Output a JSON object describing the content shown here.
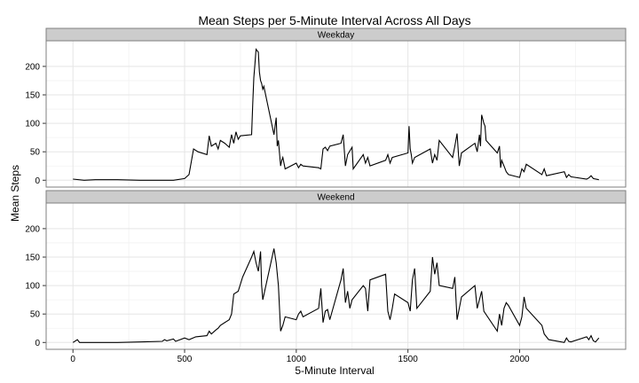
{
  "chart_data": {
    "type": "line",
    "title": "Mean Steps per 5-Minute Interval Across All Days",
    "xlabel": "5-Minute Interval",
    "ylabel": "Mean Steps",
    "xlim": [
      -120,
      2475
    ],
    "ylim": [
      -12,
      245
    ],
    "x_ticks": [
      0,
      500,
      1000,
      1500,
      2000
    ],
    "x_tick_labels": [
      "0",
      "500",
      "1000",
      "1500",
      "2000"
    ],
    "y_ticks": [
      0,
      50,
      100,
      150,
      200
    ],
    "y_tick_labels": [
      "0",
      "50",
      "100",
      "150",
      "200"
    ],
    "grid": true,
    "facets": [
      {
        "label": "Weekday",
        "x": [
          0,
          50,
          100,
          200,
          300,
          400,
          450,
          500,
          520,
          540,
          560,
          600,
          610,
          620,
          640,
          650,
          660,
          680,
          700,
          710,
          720,
          730,
          740,
          750,
          800,
          805,
          810,
          815,
          820,
          830,
          835,
          840,
          845,
          850,
          855,
          900,
          910,
          915,
          920,
          930,
          935,
          940,
          950,
          1000,
          1010,
          1020,
          1030,
          1100,
          1110,
          1120,
          1130,
          1140,
          1150,
          1200,
          1210,
          1220,
          1230,
          1250,
          1255,
          1300,
          1310,
          1320,
          1330,
          1400,
          1410,
          1420,
          1430,
          1500,
          1505,
          1510,
          1515,
          1520,
          1530,
          1600,
          1610,
          1620,
          1630,
          1640,
          1700,
          1710,
          1720,
          1730,
          1740,
          1800,
          1810,
          1820,
          1825,
          1830,
          1840,
          1845,
          1850,
          1900,
          1910,
          1915,
          1920,
          1930,
          1940,
          1950,
          2000,
          2010,
          2020,
          2030,
          2100,
          2110,
          2120,
          2200,
          2210,
          2220,
          2230,
          2300,
          2310,
          2320,
          2330,
          2355
        ],
        "values": [
          2,
          0,
          1,
          1,
          0,
          0,
          0,
          3,
          10,
          55,
          50,
          45,
          78,
          60,
          65,
          55,
          70,
          65,
          58,
          80,
          65,
          85,
          72,
          78,
          80,
          135,
          180,
          205,
          230,
          225,
          190,
          175,
          170,
          160,
          165,
          80,
          110,
          60,
          70,
          25,
          35,
          40,
          20,
          30,
          22,
          28,
          25,
          22,
          20,
          55,
          58,
          52,
          60,
          65,
          80,
          25,
          45,
          58,
          20,
          45,
          30,
          40,
          25,
          35,
          45,
          30,
          40,
          48,
          95,
          55,
          45,
          30,
          40,
          55,
          30,
          45,
          35,
          70,
          40,
          60,
          82,
          25,
          48,
          65,
          50,
          80,
          60,
          115,
          100,
          95,
          70,
          48,
          60,
          22,
          35,
          25,
          15,
          10,
          5,
          20,
          15,
          28,
          10,
          20,
          8,
          15,
          5,
          10,
          6,
          2,
          4,
          8,
          3,
          1
        ],
        "ylim": [
          -12,
          245
        ]
      },
      {
        "label": "Weekend",
        "x": [
          0,
          20,
          30,
          100,
          200,
          300,
          400,
          410,
          420,
          450,
          460,
          500,
          520,
          550,
          600,
          610,
          620,
          640,
          650,
          660,
          700,
          710,
          720,
          740,
          760,
          800,
          810,
          820,
          830,
          840,
          845,
          850,
          900,
          910,
          920,
          930,
          940,
          950,
          1000,
          1010,
          1020,
          1030,
          1100,
          1110,
          1120,
          1130,
          1140,
          1150,
          1200,
          1210,
          1220,
          1230,
          1240,
          1250,
          1300,
          1310,
          1320,
          1330,
          1400,
          1410,
          1420,
          1430,
          1440,
          1500,
          1510,
          1520,
          1530,
          1540,
          1600,
          1610,
          1620,
          1630,
          1640,
          1700,
          1710,
          1720,
          1730,
          1740,
          1800,
          1810,
          1820,
          1830,
          1840,
          1900,
          1910,
          1920,
          1930,
          1940,
          1950,
          2000,
          2010,
          2020,
          2030,
          2100,
          2110,
          2120,
          2130,
          2200,
          2210,
          2220,
          2230,
          2300,
          2310,
          2320,
          2330,
          2340,
          2355
        ],
        "values": [
          0,
          5,
          0,
          0,
          0,
          1,
          2,
          5,
          3,
          6,
          2,
          8,
          5,
          10,
          12,
          20,
          15,
          22,
          25,
          30,
          40,
          50,
          85,
          90,
          115,
          150,
          160,
          140,
          125,
          160,
          100,
          75,
          165,
          140,
          100,
          20,
          30,
          45,
          40,
          50,
          55,
          45,
          60,
          95,
          35,
          55,
          58,
          40,
          110,
          130,
          70,
          90,
          60,
          75,
          100,
          95,
          55,
          110,
          120,
          55,
          40,
          60,
          85,
          70,
          55,
          110,
          130,
          60,
          90,
          150,
          120,
          140,
          100,
          95,
          115,
          40,
          60,
          80,
          100,
          60,
          75,
          90,
          55,
          20,
          50,
          30,
          60,
          70,
          65,
          30,
          45,
          80,
          60,
          30,
          15,
          10,
          5,
          0,
          8,
          2,
          1,
          10,
          5,
          12,
          3,
          1,
          8
        ]
      }
    ]
  }
}
